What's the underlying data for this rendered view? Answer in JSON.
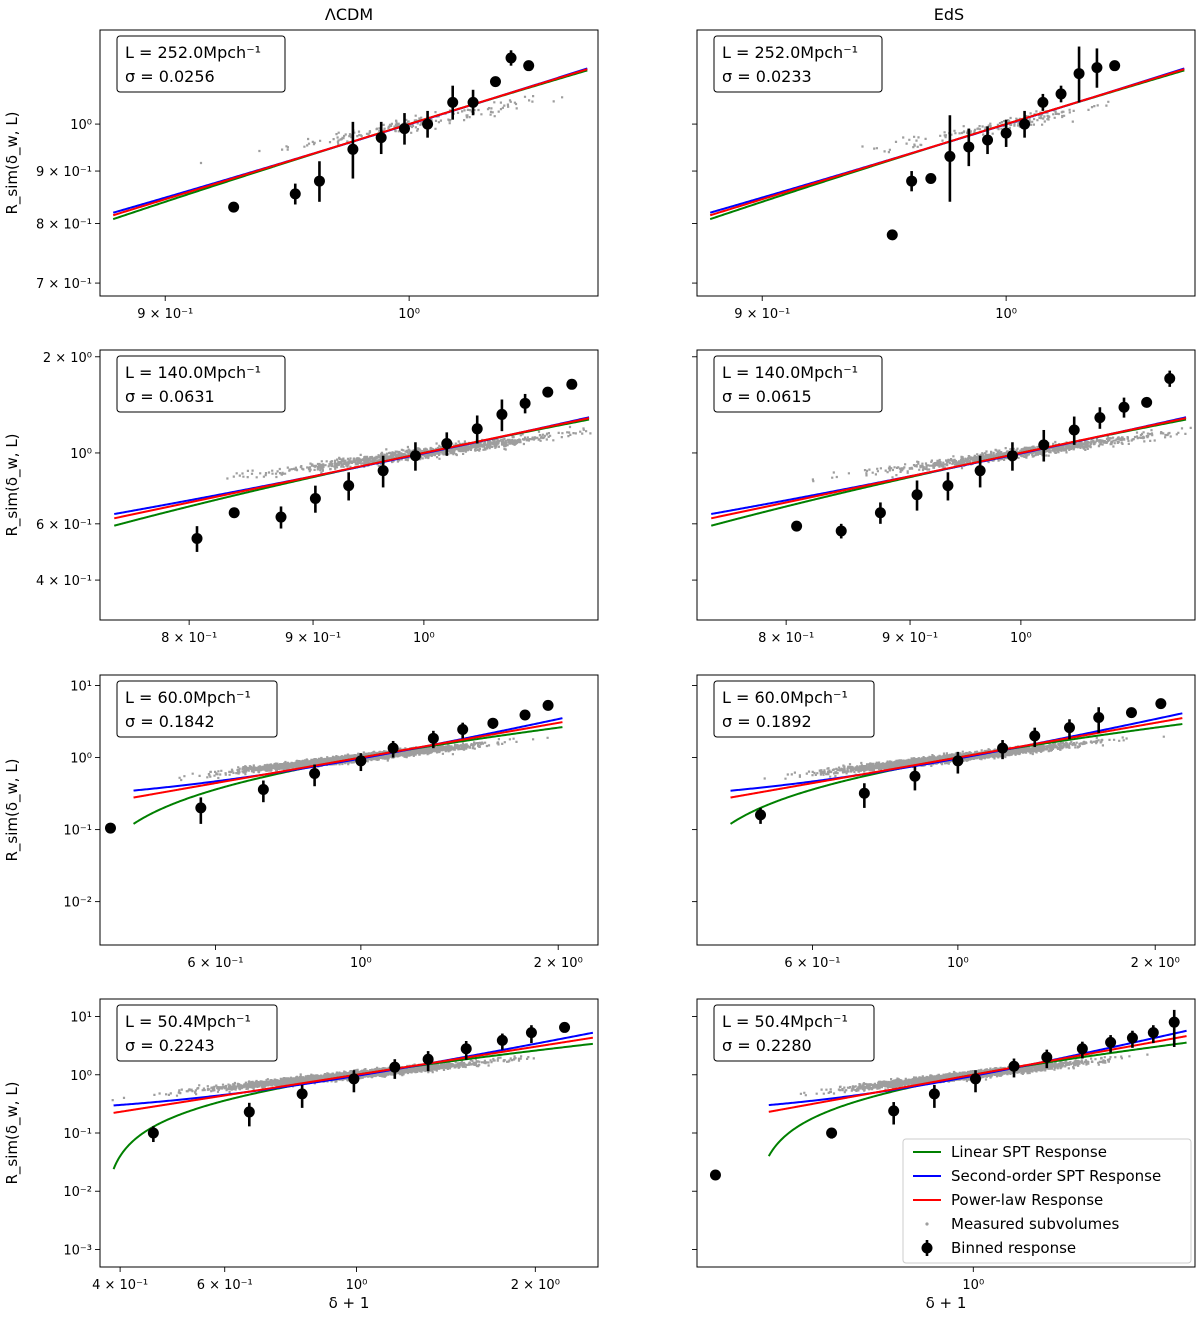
{
  "column_titles": [
    "ΛCDM",
    "EdS"
  ],
  "y_label": "R_sim(δ_w, L)",
  "x_label": "δ + 1",
  "legend": {
    "linear": "Linear SPT Response",
    "second": "Second-order SPT Response",
    "power": "Power-law Response",
    "measured": "Measured subvolumes",
    "binned": "Binned response"
  },
  "colors": {
    "linear": "#008000",
    "second": "#0000ff",
    "power": "#ff0000",
    "measured": "#9e9e9e",
    "binned": "#000000"
  },
  "chart_data": [
    {
      "type": "scatter",
      "title": "ΛCDM",
      "box_L": "L = 252.0Mpch⁻¹",
      "box_sigma": "σ = 0.0256",
      "xlim": [
        0.875,
        1.085
      ],
      "ylim": [
        0.68,
        1.235
      ],
      "xticks": [
        {
          "v": 0.9,
          "label": "9 × 10⁻¹"
        },
        {
          "v": 1.0,
          "label": "10⁰"
        }
      ],
      "yticks": [
        {
          "v": 0.7,
          "label": "7 × 10⁻¹"
        },
        {
          "v": 0.8,
          "label": "8 × 10⁻¹"
        },
        {
          "v": 0.9,
          "label": "9 × 10⁻¹"
        },
        {
          "v": 1.0,
          "label": "10⁰"
        }
      ],
      "curve_x": [
        0.88,
        1.08
      ],
      "sigma": 0.0256,
      "n_scatter": 180,
      "binned": [
        {
          "x": 0.927,
          "y": 0.83,
          "e": 0.008
        },
        {
          "x": 0.952,
          "y": 0.855,
          "e": 0.02
        },
        {
          "x": 0.962,
          "y": 0.88,
          "e": 0.04
        },
        {
          "x": 0.976,
          "y": 0.945,
          "e": 0.06
        },
        {
          "x": 0.988,
          "y": 0.97,
          "e": 0.035
        },
        {
          "x": 0.998,
          "y": 0.99,
          "e": 0.035
        },
        {
          "x": 1.008,
          "y": 1.0,
          "e": 0.03
        },
        {
          "x": 1.019,
          "y": 1.05,
          "e": 0.04
        },
        {
          "x": 1.028,
          "y": 1.05,
          "e": 0.03
        },
        {
          "x": 1.038,
          "y": 1.1,
          "e": 0.01
        },
        {
          "x": 1.045,
          "y": 1.16,
          "e": 0.02
        },
        {
          "x": 1.053,
          "y": 1.14,
          "e": 0.008
        }
      ]
    },
    {
      "type": "scatter",
      "title": "EdS",
      "box_L": "L = 252.0Mpch⁻¹",
      "box_sigma": "σ = 0.0233",
      "xlim": [
        0.875,
        1.085
      ],
      "ylim": [
        0.68,
        1.235
      ],
      "xticks": [
        {
          "v": 0.9,
          "label": "9 × 10⁻¹"
        },
        {
          "v": 1.0,
          "label": "10⁰"
        }
      ],
      "yticks": [
        {
          "v": 0.7,
          "label": ""
        },
        {
          "v": 0.8,
          "label": ""
        },
        {
          "v": 0.9,
          "label": ""
        },
        {
          "v": 1.0,
          "label": ""
        }
      ],
      "curve_x": [
        0.88,
        1.08
      ],
      "sigma": 0.0233,
      "n_scatter": 160,
      "binned": [
        {
          "x": 0.952,
          "y": 0.78,
          "e": 0.005
        },
        {
          "x": 0.96,
          "y": 0.88,
          "e": 0.02
        },
        {
          "x": 0.968,
          "y": 0.885,
          "e": 0.008
        },
        {
          "x": 0.976,
          "y": 0.93,
          "e": 0.09
        },
        {
          "x": 0.984,
          "y": 0.95,
          "e": 0.04
        },
        {
          "x": 0.992,
          "y": 0.965,
          "e": 0.03
        },
        {
          "x": 1.0,
          "y": 0.98,
          "e": 0.03
        },
        {
          "x": 1.008,
          "y": 1.0,
          "e": 0.03
        },
        {
          "x": 1.016,
          "y": 1.05,
          "e": 0.02
        },
        {
          "x": 1.024,
          "y": 1.07,
          "e": 0.02
        },
        {
          "x": 1.032,
          "y": 1.12,
          "e": 0.07
        },
        {
          "x": 1.04,
          "y": 1.135,
          "e": 0.05
        },
        {
          "x": 1.048,
          "y": 1.14,
          "e": 0.01
        }
      ]
    },
    {
      "type": "scatter",
      "title": "",
      "box_L": "L = 140.0Mpch⁻¹",
      "box_sigma": "σ = 0.0631",
      "xlim": [
        0.735,
        1.18
      ],
      "ylim": [
        0.3,
        2.1
      ],
      "xticks": [
        {
          "v": 0.8,
          "label": "8 × 10⁻¹"
        },
        {
          "v": 0.9,
          "label": "9 × 10⁻¹"
        },
        {
          "v": 1.0,
          "label": "10⁰"
        }
      ],
      "yticks": [
        {
          "v": 0.4,
          "label": "4 × 10⁻¹"
        },
        {
          "v": 0.6,
          "label": "6 × 10⁻¹"
        },
        {
          "v": 1.0,
          "label": "10⁰"
        },
        {
          "v": 2.0,
          "label": "2 × 10⁰"
        }
      ],
      "curve_x": [
        0.745,
        1.17
      ],
      "sigma": 0.0631,
      "n_scatter": 1100,
      "binned": [
        {
          "x": 0.806,
          "y": 0.54,
          "e": 0.05
        },
        {
          "x": 0.835,
          "y": 0.65,
          "e": 0.015
        },
        {
          "x": 0.873,
          "y": 0.63,
          "e": 0.05
        },
        {
          "x": 0.902,
          "y": 0.72,
          "e": 0.07
        },
        {
          "x": 0.931,
          "y": 0.79,
          "e": 0.08
        },
        {
          "x": 0.962,
          "y": 0.88,
          "e": 0.1
        },
        {
          "x": 0.992,
          "y": 0.98,
          "e": 0.1
        },
        {
          "x": 1.022,
          "y": 1.07,
          "e": 0.09
        },
        {
          "x": 1.052,
          "y": 1.19,
          "e": 0.12
        },
        {
          "x": 1.077,
          "y": 1.32,
          "e": 0.15
        },
        {
          "x": 1.101,
          "y": 1.43,
          "e": 0.1
        },
        {
          "x": 1.125,
          "y": 1.55,
          "e": 0.05
        },
        {
          "x": 1.151,
          "y": 1.64,
          "e": 0.02
        }
      ]
    },
    {
      "type": "scatter",
      "title": "",
      "box_L": "L = 140.0Mpch⁻¹",
      "box_sigma": "σ = 0.0615",
      "xlim": [
        0.735,
        1.18
      ],
      "ylim": [
        0.3,
        2.1
      ],
      "xticks": [
        {
          "v": 0.8,
          "label": "8 × 10⁻¹"
        },
        {
          "v": 0.9,
          "label": "9 × 10⁻¹"
        },
        {
          "v": 1.0,
          "label": "10⁰"
        }
      ],
      "yticks": [
        {
          "v": 0.4,
          "label": ""
        },
        {
          "v": 0.6,
          "label": ""
        },
        {
          "v": 1.0,
          "label": ""
        },
        {
          "v": 2.0,
          "label": ""
        }
      ],
      "curve_x": [
        0.745,
        1.17
      ],
      "sigma": 0.0615,
      "n_scatter": 1000,
      "binned": [
        {
          "x": 0.808,
          "y": 0.59,
          "e": 0.015
        },
        {
          "x": 0.843,
          "y": 0.57,
          "e": 0.03
        },
        {
          "x": 0.875,
          "y": 0.65,
          "e": 0.05
        },
        {
          "x": 0.906,
          "y": 0.74,
          "e": 0.08
        },
        {
          "x": 0.933,
          "y": 0.79,
          "e": 0.08
        },
        {
          "x": 0.962,
          "y": 0.88,
          "e": 0.1
        },
        {
          "x": 0.992,
          "y": 0.98,
          "e": 0.1
        },
        {
          "x": 1.022,
          "y": 1.06,
          "e": 0.12
        },
        {
          "x": 1.052,
          "y": 1.18,
          "e": 0.12
        },
        {
          "x": 1.078,
          "y": 1.29,
          "e": 0.1
        },
        {
          "x": 1.103,
          "y": 1.39,
          "e": 0.1
        },
        {
          "x": 1.127,
          "y": 1.44,
          "e": 0.04
        },
        {
          "x": 1.152,
          "y": 1.71,
          "e": 0.1
        }
      ]
    },
    {
      "type": "scatter",
      "title": "",
      "box_L": "L = 60.0Mpch⁻¹",
      "box_sigma": "σ = 0.1842",
      "xlim": [
        0.4,
        2.3
      ],
      "ylim": [
        0.0025,
        14
      ],
      "xticks": [
        {
          "v": 0.6,
          "label": "6 × 10⁻¹"
        },
        {
          "v": 1.0,
          "label": "10⁰"
        },
        {
          "v": 2.0,
          "label": "2 × 10⁰"
        }
      ],
      "yticks": [
        {
          "v": 0.01,
          "label": "10⁻²"
        },
        {
          "v": 0.1,
          "label": "10⁻¹"
        },
        {
          "v": 1.0,
          "label": "10⁰"
        },
        {
          "v": 10.0,
          "label": "10¹"
        }
      ],
      "curve_x": [
        0.45,
        2.03
      ],
      "sigma": 0.1842,
      "n_scatter": 3200,
      "binned": [
        {
          "x": 0.415,
          "y": 0.105,
          "e": 0.002
        },
        {
          "x": 0.57,
          "y": 0.2,
          "e": 0.08
        },
        {
          "x": 0.71,
          "y": 0.36,
          "e": 0.12
        },
        {
          "x": 0.85,
          "y": 0.6,
          "e": 0.2
        },
        {
          "x": 1.0,
          "y": 0.9,
          "e": 0.25
        },
        {
          "x": 1.12,
          "y": 1.35,
          "e": 0.35
        },
        {
          "x": 1.29,
          "y": 1.85,
          "e": 0.5
        },
        {
          "x": 1.43,
          "y": 2.45,
          "e": 0.6
        },
        {
          "x": 1.59,
          "y": 3.0,
          "e": 0.5
        },
        {
          "x": 1.78,
          "y": 3.9,
          "e": 0.3
        },
        {
          "x": 1.93,
          "y": 5.3,
          "e": 0.2
        }
      ]
    },
    {
      "type": "scatter",
      "title": "",
      "box_L": "L = 60.0Mpch⁻¹",
      "box_sigma": "σ = 0.1892",
      "xlim": [
        0.4,
        2.3
      ],
      "ylim": [
        0.0025,
        14
      ],
      "xticks": [
        {
          "v": 0.6,
          "label": "6 × 10⁻¹"
        },
        {
          "v": 1.0,
          "label": "10⁰"
        },
        {
          "v": 2.0,
          "label": "2 × 10⁰"
        }
      ],
      "yticks": [
        {
          "v": 0.01,
          "label": ""
        },
        {
          "v": 0.1,
          "label": ""
        },
        {
          "v": 1.0,
          "label": ""
        },
        {
          "v": 10.0,
          "label": ""
        }
      ],
      "curve_x": [
        0.45,
        2.2
      ],
      "sigma": 0.1892,
      "n_scatter": 3200,
      "binned": [
        {
          "x": 0.5,
          "y": 0.16,
          "e": 0.04
        },
        {
          "x": 0.72,
          "y": 0.32,
          "e": 0.12
        },
        {
          "x": 0.86,
          "y": 0.55,
          "e": 0.2
        },
        {
          "x": 1.0,
          "y": 0.9,
          "e": 0.3
        },
        {
          "x": 1.17,
          "y": 1.35,
          "e": 0.4
        },
        {
          "x": 1.31,
          "y": 2.0,
          "e": 0.6
        },
        {
          "x": 1.48,
          "y": 2.6,
          "e": 0.8
        },
        {
          "x": 1.64,
          "y": 3.6,
          "e": 1.4
        },
        {
          "x": 1.84,
          "y": 4.2,
          "e": 0.3
        },
        {
          "x": 2.04,
          "y": 5.6,
          "e": 0.2
        }
      ]
    },
    {
      "type": "scatter",
      "title": "",
      "box_L": "L = 50.4Mpch⁻¹",
      "box_sigma": "σ = 0.2243",
      "xlim": [
        0.37,
        2.55
      ],
      "ylim": [
        0.0005,
        20
      ],
      "xticks": [
        {
          "v": 0.4,
          "label": "4 × 10⁻¹"
        },
        {
          "v": 0.6,
          "label": "6 × 10⁻¹"
        },
        {
          "v": 1.0,
          "label": "10⁰"
        },
        {
          "v": 2.0,
          "label": "2 × 10⁰"
        }
      ],
      "yticks": [
        {
          "v": 0.001,
          "label": "10⁻³"
        },
        {
          "v": 0.01,
          "label": "10⁻²"
        },
        {
          "v": 0.1,
          "label": "10⁻¹"
        },
        {
          "v": 1.0,
          "label": "10⁰"
        },
        {
          "v": 10.0,
          "label": "10¹"
        }
      ],
      "curve_x": [
        0.39,
        2.5
      ],
      "sigma": 0.2243,
      "n_scatter": 3600,
      "binned": [
        {
          "x": 0.455,
          "y": 0.1,
          "e": 0.03
        },
        {
          "x": 0.66,
          "y": 0.23,
          "e": 0.1
        },
        {
          "x": 0.81,
          "y": 0.47,
          "e": 0.2
        },
        {
          "x": 0.99,
          "y": 0.85,
          "e": 0.35
        },
        {
          "x": 1.16,
          "y": 1.35,
          "e": 0.5
        },
        {
          "x": 1.32,
          "y": 1.85,
          "e": 0.7
        },
        {
          "x": 1.53,
          "y": 2.8,
          "e": 1.0
        },
        {
          "x": 1.76,
          "y": 3.9,
          "e": 1.2
        },
        {
          "x": 1.97,
          "y": 5.3,
          "e": 1.8
        },
        {
          "x": 2.24,
          "y": 6.5,
          "e": 1.0
        }
      ]
    },
    {
      "type": "scatter",
      "title": "",
      "box_L": "L = 50.4Mpch⁻¹",
      "box_sigma": "σ = 0.2280",
      "xlim": [
        0.29,
        2.7
      ],
      "ylim": [
        0.0005,
        20
      ],
      "xticks": [
        {
          "v": 1.0,
          "label": "10⁰"
        }
      ],
      "yticks": [
        {
          "v": 0.001,
          "label": ""
        },
        {
          "v": 0.01,
          "label": ""
        },
        {
          "v": 0.1,
          "label": ""
        },
        {
          "v": 1.0,
          "label": ""
        },
        {
          "v": 10.0,
          "label": ""
        }
      ],
      "curve_x": [
        0.4,
        2.6
      ],
      "sigma": 0.228,
      "n_scatter": 3000,
      "binned": [
        {
          "x": 0.315,
          "y": 0.019,
          "e": 0.002
        },
        {
          "x": 0.53,
          "y": 0.1,
          "e": 0.02
        },
        {
          "x": 0.7,
          "y": 0.24,
          "e": 0.1
        },
        {
          "x": 0.84,
          "y": 0.47,
          "e": 0.2
        },
        {
          "x": 1.01,
          "y": 0.85,
          "e": 0.35
        },
        {
          "x": 1.2,
          "y": 1.4,
          "e": 0.5
        },
        {
          "x": 1.39,
          "y": 2.0,
          "e": 0.7
        },
        {
          "x": 1.63,
          "y": 2.8,
          "e": 0.9
        },
        {
          "x": 1.85,
          "y": 3.6,
          "e": 1.2
        },
        {
          "x": 2.04,
          "y": 4.3,
          "e": 1.4
        },
        {
          "x": 2.24,
          "y": 5.3,
          "e": 1.8
        },
        {
          "x": 2.46,
          "y": 8.0,
          "e": 5.0
        }
      ]
    }
  ]
}
